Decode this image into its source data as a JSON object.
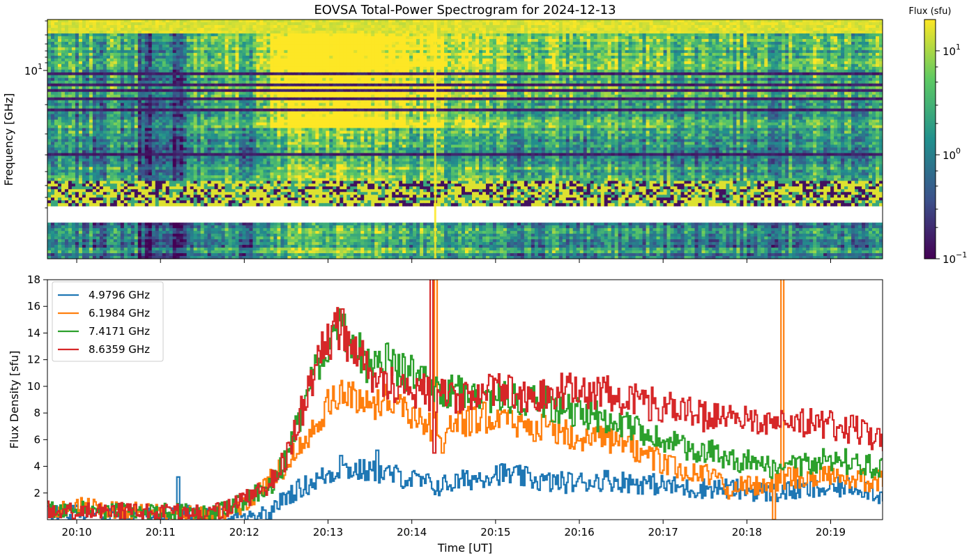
{
  "chart_data": [
    {
      "type": "heatmap",
      "title": "EOVSA Total-Power Spectrogram for 2024-12-13",
      "ylabel": "Frequency [GHz]",
      "y_scale": "log",
      "y_ticks": [
        {
          "value": 10,
          "label": "10",
          "exp": "1"
        }
      ],
      "x_ticks": [
        "20:10",
        "20:11",
        "20:12",
        "20:13",
        "20:14",
        "20:15",
        "20:16",
        "20:17",
        "20:18",
        "20:19"
      ],
      "x_tick_labels_shown": false,
      "colormap": "viridis",
      "color_scale": "log",
      "colorbar": {
        "label": "Flux (sfu)",
        "ticks": [
          {
            "value": 10,
            "base": "10",
            "exp": "1"
          },
          {
            "value": 1,
            "base": "10",
            "exp": "0"
          },
          {
            "value": 0.1,
            "base": "10",
            "exp": "−1"
          }
        ],
        "range": [
          0.1,
          20
        ]
      },
      "colors": [
        "#440154",
        "#3b528b",
        "#21908d",
        "#5dc963",
        "#fde725"
      ]
    },
    {
      "type": "line",
      "xlabel": "Time [UT]",
      "ylabel": "Flux Density [sfu]",
      "ylim": [
        0,
        18
      ],
      "y_ticks": [
        "2",
        "4",
        "6",
        "8",
        "10",
        "12",
        "14",
        "16",
        "18"
      ],
      "x_ticks": [
        "20:10",
        "20:11",
        "20:12",
        "20:13",
        "20:14",
        "20:15",
        "20:16",
        "20:17",
        "20:18",
        "20:19"
      ],
      "x_range_minutes": [
        9.65,
        19.62
      ],
      "legend_position": "top-left",
      "series": [
        {
          "name": "4.9796 GHz",
          "color": "#1f77b4",
          "points": [
            [
              9.7,
              0.5
            ],
            [
              10.0,
              0.5
            ],
            [
              10.5,
              0.4
            ],
            [
              11.0,
              0.5
            ],
            [
              11.2,
              0.6
            ],
            [
              11.5,
              0.3
            ],
            [
              12.0,
              0.3
            ],
            [
              12.3,
              0.5
            ],
            [
              12.5,
              1.8
            ],
            [
              12.8,
              2.8
            ],
            [
              13.0,
              3.4
            ],
            [
              13.2,
              3.8
            ],
            [
              13.5,
              3.6
            ],
            [
              13.8,
              3.3
            ],
            [
              14.0,
              3.0
            ],
            [
              14.3,
              2.5
            ],
            [
              14.6,
              2.9
            ],
            [
              15.0,
              3.5
            ],
            [
              15.3,
              3.2
            ],
            [
              15.6,
              2.8
            ],
            [
              16.0,
              2.8
            ],
            [
              16.3,
              3.0
            ],
            [
              16.6,
              2.8
            ],
            [
              17.0,
              2.6
            ],
            [
              17.3,
              2.3
            ],
            [
              17.6,
              2.4
            ],
            [
              18.0,
              2.2
            ],
            [
              18.3,
              2.0
            ],
            [
              18.6,
              2.2
            ],
            [
              19.0,
              2.3
            ],
            [
              19.3,
              2.6
            ],
            [
              19.6,
              1.8
            ]
          ],
          "spikes": [
            [
              11.21,
              3.2
            ],
            [
              13.15,
              4.8
            ],
            [
              13.58,
              5.2
            ]
          ]
        },
        {
          "name": "6.1984 GHz",
          "color": "#ff7f0e",
          "points": [
            [
              9.7,
              0.7
            ],
            [
              10.0,
              1.0
            ],
            [
              10.5,
              0.7
            ],
            [
              11.0,
              0.6
            ],
            [
              11.5,
              0.4
            ],
            [
              11.8,
              0.6
            ],
            [
              12.0,
              1.0
            ],
            [
              12.3,
              3.0
            ],
            [
              12.5,
              4.2
            ],
            [
              12.7,
              6.0
            ],
            [
              12.9,
              7.8
            ],
            [
              13.1,
              9.4
            ],
            [
              13.3,
              9.2
            ],
            [
              13.5,
              8.6
            ],
            [
              13.7,
              9.2
            ],
            [
              13.9,
              8.4
            ],
            [
              14.1,
              7.6
            ],
            [
              14.3,
              6.5
            ],
            [
              14.5,
              7.2
            ],
            [
              14.8,
              7.5
            ],
            [
              15.0,
              8.0
            ],
            [
              15.2,
              7.2
            ],
            [
              15.5,
              7.0
            ],
            [
              15.8,
              6.5
            ],
            [
              16.0,
              6.3
            ],
            [
              16.3,
              5.9
            ],
            [
              16.6,
              5.5
            ],
            [
              16.9,
              4.6
            ],
            [
              17.2,
              3.6
            ],
            [
              17.5,
              3.5
            ],
            [
              17.8,
              2.2
            ],
            [
              18.0,
              2.6
            ],
            [
              18.3,
              2.8
            ],
            [
              18.6,
              3.2
            ],
            [
              19.0,
              3.4
            ],
            [
              19.3,
              3.0
            ],
            [
              19.6,
              2.9
            ]
          ],
          "spikes": [
            [
              14.28,
              19.0
            ],
            [
              14.36,
              5.0
            ],
            [
              18.41,
              19.0
            ],
            [
              18.32,
              0.0
            ]
          ]
        },
        {
          "name": "7.4171 GHz",
          "color": "#2ca02c",
          "points": [
            [
              9.7,
              0.8
            ],
            [
              10.0,
              0.8
            ],
            [
              10.5,
              0.6
            ],
            [
              11.0,
              0.6
            ],
            [
              11.5,
              0.5
            ],
            [
              11.8,
              0.8
            ],
            [
              12.0,
              1.5
            ],
            [
              12.3,
              2.5
            ],
            [
              12.5,
              4.6
            ],
            [
              12.7,
              8.5
            ],
            [
              12.9,
              12.2
            ],
            [
              13.1,
              14.8
            ],
            [
              13.3,
              13.2
            ],
            [
              13.5,
              11.2
            ],
            [
              13.7,
              11.8
            ],
            [
              13.9,
              11.2
            ],
            [
              14.1,
              10.4
            ],
            [
              14.3,
              9.6
            ],
            [
              14.6,
              9.6
            ],
            [
              15.0,
              9.2
            ],
            [
              15.3,
              9.0
            ],
            [
              15.6,
              8.8
            ],
            [
              16.0,
              7.9
            ],
            [
              16.3,
              7.6
            ],
            [
              16.6,
              7.0
            ],
            [
              17.0,
              5.8
            ],
            [
              17.3,
              5.3
            ],
            [
              17.6,
              5.0
            ],
            [
              18.0,
              4.3
            ],
            [
              18.3,
              3.8
            ],
            [
              18.6,
              4.1
            ],
            [
              19.0,
              4.6
            ],
            [
              19.3,
              4.2
            ],
            [
              19.6,
              3.9
            ]
          ],
          "spikes": [
            [
              13.18,
              15.4
            ]
          ]
        },
        {
          "name": "8.6359 GHz",
          "color": "#d62728",
          "points": [
            [
              9.7,
              0.8
            ],
            [
              10.0,
              0.6
            ],
            [
              10.5,
              0.7
            ],
            [
              11.0,
              0.5
            ],
            [
              11.5,
              0.5
            ],
            [
              11.8,
              0.8
            ],
            [
              12.0,
              1.5
            ],
            [
              12.3,
              2.8
            ],
            [
              12.5,
              4.8
            ],
            [
              12.7,
              8.5
            ],
            [
              12.9,
              12.3
            ],
            [
              13.1,
              14.2
            ],
            [
              13.3,
              13.0
            ],
            [
              13.5,
              11.0
            ],
            [
              13.7,
              10.2
            ],
            [
              13.9,
              9.8
            ],
            [
              14.1,
              9.6
            ],
            [
              14.3,
              9.4
            ],
            [
              14.6,
              9.3
            ],
            [
              15.0,
              9.6
            ],
            [
              15.3,
              9.4
            ],
            [
              15.6,
              9.5
            ],
            [
              16.0,
              9.8
            ],
            [
              16.3,
              9.5
            ],
            [
              16.6,
              9.0
            ],
            [
              17.0,
              8.5
            ],
            [
              17.3,
              8.0
            ],
            [
              17.6,
              7.7
            ],
            [
              18.0,
              7.3
            ],
            [
              18.3,
              7.6
            ],
            [
              18.6,
              7.5
            ],
            [
              19.0,
              7.0
            ],
            [
              19.3,
              6.8
            ],
            [
              19.6,
              6.1
            ]
          ],
          "spikes": [
            [
              14.23,
              19.0
            ],
            [
              14.26,
              5.0
            ],
            [
              13.17,
              15.8
            ]
          ]
        }
      ]
    }
  ]
}
